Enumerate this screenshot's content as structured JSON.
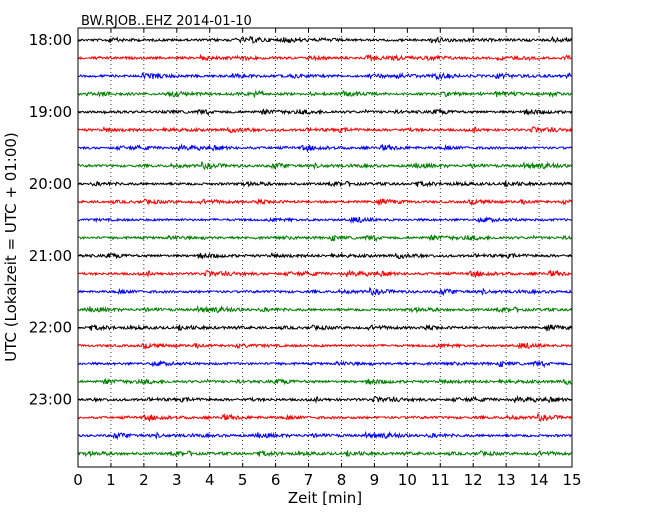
{
  "chart_data": {
    "type": "line",
    "title": "BW.RJOB..EHZ 2014-01-10",
    "xlabel": "Zeit  [min]",
    "ylabel": "UTC (Lokalzeit = UTC + 01:00)",
    "xlim": [
      0,
      15
    ],
    "x_ticks": [
      0,
      1,
      2,
      3,
      4,
      5,
      6,
      7,
      8,
      9,
      10,
      11,
      12,
      13,
      14,
      15
    ],
    "x_tick_labels": [
      "0",
      "1",
      "2",
      "3",
      "4",
      "5",
      "6",
      "7",
      "8",
      "9",
      "10",
      "11",
      "12",
      "13",
      "14",
      "15"
    ],
    "y_tick_labels": [
      "18:00",
      "19:00",
      "20:00",
      "21:00",
      "22:00",
      "23:00"
    ],
    "grid": "vertical dotted",
    "trace_colors": [
      "#000000",
      "#ff0000",
      "#0000ff",
      "#007f00"
    ],
    "traces": [
      {
        "start": "18:00"
      },
      {
        "start": "18:15"
      },
      {
        "start": "18:30"
      },
      {
        "start": "18:45"
      },
      {
        "start": "19:00"
      },
      {
        "start": "19:15"
      },
      {
        "start": "19:30"
      },
      {
        "start": "19:45"
      },
      {
        "start": "20:00"
      },
      {
        "start": "20:15"
      },
      {
        "start": "20:30"
      },
      {
        "start": "20:45"
      },
      {
        "start": "21:00"
      },
      {
        "start": "21:15"
      },
      {
        "start": "21:30"
      },
      {
        "start": "21:45"
      },
      {
        "start": "22:00"
      },
      {
        "start": "22:15"
      },
      {
        "start": "22:30"
      },
      {
        "start": "22:45"
      },
      {
        "start": "23:00"
      },
      {
        "start": "23:15"
      },
      {
        "start": "23:30"
      },
      {
        "start": "23:45"
      }
    ]
  }
}
